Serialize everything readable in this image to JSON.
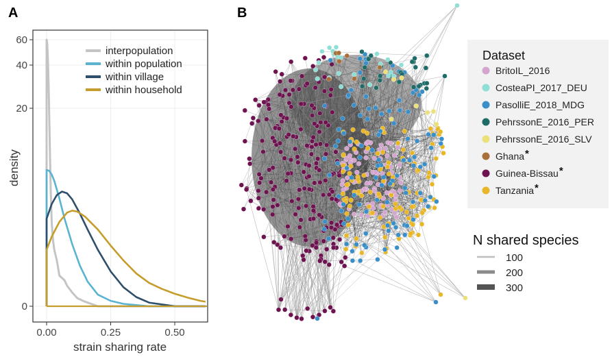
{
  "panel_a_letter": "A",
  "panel_b_letter": "B",
  "chart_data": [
    {
      "type": "area",
      "panel": "A",
      "xlabel": "strain sharing rate",
      "ylabel": "density",
      "x_ticks": [
        "0.00",
        "0.25",
        "0.50"
      ],
      "x_tick_values": [
        0,
        0.25,
        0.5
      ],
      "y_ticks": [
        "0",
        "20",
        "40",
        "60"
      ],
      "y_tick_values": [
        0,
        20,
        40,
        60
      ],
      "y_scale": "sqrt",
      "xlim": [
        -0.03,
        0.63
      ],
      "ylim": [
        0,
        64
      ],
      "grid": true,
      "legend_position": "top-right",
      "series": [
        {
          "name": "interpopulation",
          "color": "#c4c4c4",
          "x": [
            0,
            0.002,
            0.005,
            0.008,
            0.012,
            0.016,
            0.02,
            0.025,
            0.03,
            0.04,
            0.05,
            0.06,
            0.07,
            0.08,
            0.1,
            0.12,
            0.15,
            0.2,
            0.3,
            0.62
          ],
          "y": [
            60,
            58,
            45,
            30,
            15,
            8,
            4.5,
            3.0,
            2.3,
            1.6,
            0.8,
            0.7,
            0.6,
            0.4,
            0.2,
            0.08,
            0.03,
            0,
            0,
            0
          ]
        },
        {
          "name": "within population",
          "color": "#5ab4d0",
          "x": [
            0,
            0.01,
            0.02,
            0.03,
            0.05,
            0.07,
            0.1,
            0.13,
            0.16,
            0.2,
            0.25,
            0.3,
            0.4,
            0.62
          ],
          "y": [
            10.5,
            10.4,
            9.9,
            9.1,
            7.0,
            4.9,
            2.7,
            1.3,
            0.55,
            0.15,
            0.04,
            0.01,
            0,
            0
          ]
        },
        {
          "name": "within village",
          "color": "#2e4f6b",
          "x": [
            0,
            0.02,
            0.04,
            0.06,
            0.08,
            0.1,
            0.13,
            0.16,
            0.2,
            0.25,
            0.3,
            0.35,
            0.4,
            0.5,
            0.62
          ],
          "y": [
            4.9,
            6.4,
            7.4,
            7.8,
            7.6,
            6.9,
            5.4,
            3.9,
            2.3,
            1.0,
            0.35,
            0.1,
            0.02,
            0,
            0
          ]
        },
        {
          "name": "within household",
          "color": "#c59d2a",
          "x": [
            0,
            0.02,
            0.05,
            0.08,
            0.1,
            0.12,
            0.15,
            0.2,
            0.25,
            0.3,
            0.35,
            0.4,
            0.45,
            0.5,
            0.55,
            0.6,
            0.62
          ],
          "y": [
            2.3,
            3.3,
            4.6,
            5.5,
            5.7,
            5.6,
            5.1,
            3.9,
            2.6,
            1.6,
            0.9,
            0.5,
            0.3,
            0.17,
            0.09,
            0.04,
            0.03
          ]
        }
      ]
    },
    {
      "type": "network",
      "panel": "B",
      "legend_title": "Dataset",
      "datasets": [
        {
          "label": "BritoIL_2016",
          "star": "",
          "color": "#d4a5cf"
        },
        {
          "label": "CosteaPI_2017_DEU",
          "star": "",
          "color": "#8fdfd6"
        },
        {
          "label": "PasolliE_2018_MDG",
          "star": "",
          "color": "#3a8fc9"
        },
        {
          "label": "PehrssonE_2016_PER",
          "star": "",
          "color": "#1e6b68"
        },
        {
          "label": "PehrssonE_2016_SLV",
          "star": "",
          "color": "#ece07a"
        },
        {
          "label": "Ghana",
          "star": "*",
          "color": "#a86f3a"
        },
        {
          "label": "Guinea-Bissau",
          "star": "*",
          "color": "#6d1450"
        },
        {
          "label": "Tanzania",
          "star": "*",
          "color": "#e8b729"
        }
      ],
      "edge_legend_title": "N shared species",
      "edge_legend": [
        {
          "label": "100",
          "color": "#bdbdbd"
        },
        {
          "label": "200",
          "color": "#8a8a8a"
        },
        {
          "label": "300",
          "color": "#545454"
        }
      ],
      "network_colors": {
        "edge": "#3c3c3c",
        "edge_light": "#9a9a9a"
      }
    }
  ]
}
